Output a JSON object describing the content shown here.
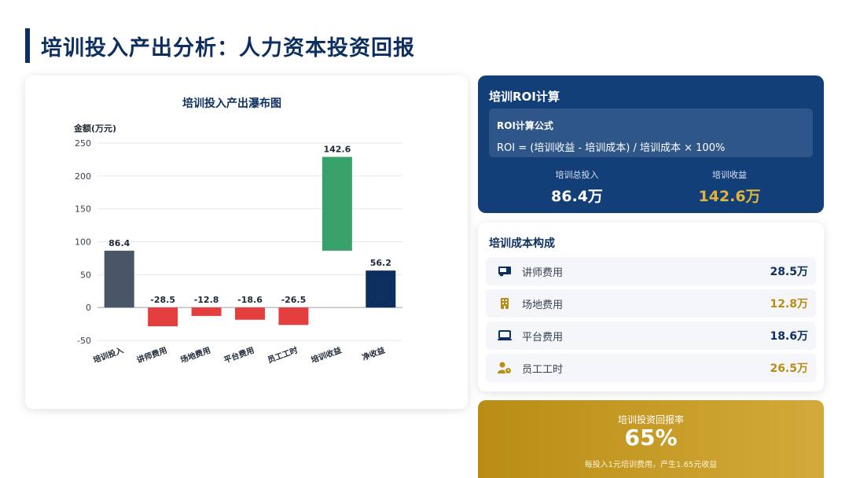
{
  "page_title": "培训投入产出分析：人力资本投资回报",
  "chart_data": {
    "type": "bar",
    "subtype": "waterfall",
    "title": "培训投入产出瀑布图",
    "ylabel": "金额(万元)",
    "xlabel": "",
    "ylim": [
      -50,
      250
    ],
    "yticks": [
      250,
      200,
      150,
      100,
      50,
      0,
      -50
    ],
    "grid": true,
    "categories": [
      "培训投入",
      "讲师费用",
      "场地费用",
      "平台费用",
      "员工工时",
      "培训收益",
      "净收益"
    ],
    "values": [
      86.4,
      -28.5,
      -12.8,
      -18.6,
      -26.5,
      142.6,
      56.2
    ],
    "bar_ranges": [
      [
        0,
        86.4
      ],
      [
        -28.5,
        0
      ],
      [
        -12.8,
        0
      ],
      [
        -18.6,
        0
      ],
      [
        -26.5,
        0
      ],
      [
        86.4,
        229.0
      ],
      [
        0,
        56.2
      ]
    ],
    "labels": [
      "86.4",
      "-28.5",
      "-12.8",
      "-18.6",
      "-26.5",
      "142.6",
      "56.2"
    ],
    "colors": [
      "#4a5568",
      "#e53e3e",
      "#e53e3e",
      "#e53e3e",
      "#e53e3e",
      "#38a169",
      "#0d2f5f"
    ]
  },
  "roi": {
    "title": "培训ROI计算",
    "formula_label": "ROI计算公式",
    "formula": "ROI = (培训收益 - 培训成本) / 培训成本 × 100%",
    "total_invest_label": "培训总投入",
    "total_invest_value": "86.4万",
    "gain_label": "培训收益",
    "gain_value": "142.6万"
  },
  "cost": {
    "title": "培训成本构成",
    "items": [
      {
        "name": "讲师费用",
        "value": "28.5万",
        "icon": "teacher-icon",
        "color": "#0d2f5f"
      },
      {
        "name": "场地费用",
        "value": "12.8万",
        "icon": "building-icon",
        "color": "#b98d14"
      },
      {
        "name": "平台费用",
        "value": "18.6万",
        "icon": "laptop-icon",
        "color": "#0d2f5f"
      },
      {
        "name": "员工工时",
        "value": "26.5万",
        "icon": "user-clock-icon",
        "color": "#b98d14"
      }
    ]
  },
  "rate": {
    "label": "培训投资回报率",
    "value": "65%",
    "note": "每投入1元培训费用，产生1.65元收益"
  }
}
